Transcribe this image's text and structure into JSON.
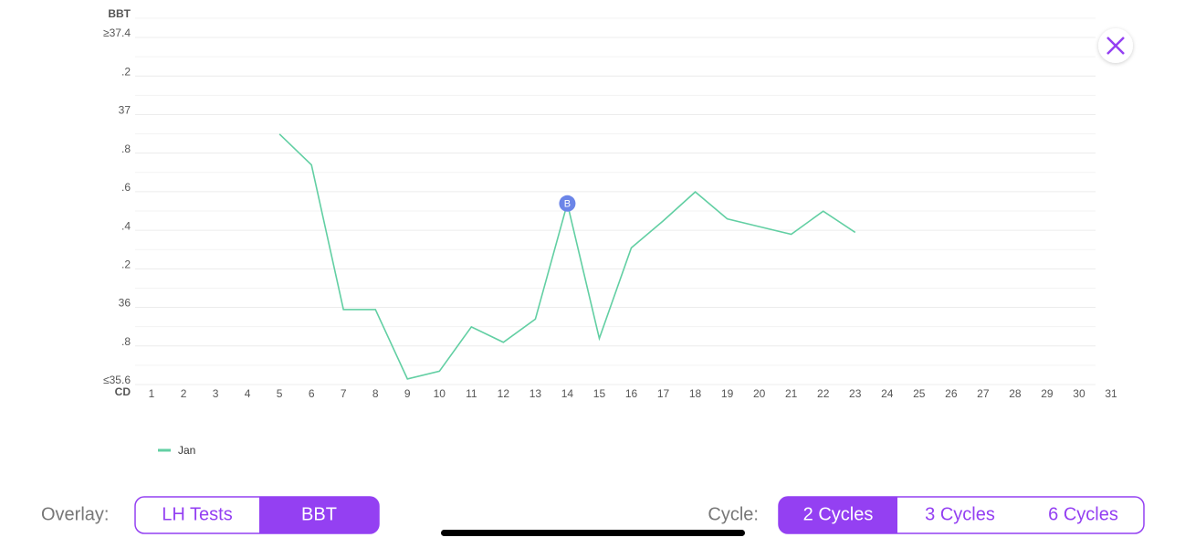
{
  "chart_data": {
    "type": "line",
    "y_label": "BBT",
    "x_label": "CD",
    "x": [
      5,
      6,
      7,
      8,
      9,
      10,
      11,
      12,
      13,
      14,
      15,
      16,
      17,
      18,
      19,
      20,
      21,
      22,
      23
    ],
    "series": [
      {
        "name": "Jan",
        "color": "#62cfa3",
        "values": [
          36.88,
          36.72,
          35.97,
          35.97,
          35.61,
          35.65,
          35.88,
          35.8,
          35.92,
          36.52,
          35.82,
          36.29,
          36.43,
          36.58,
          36.44,
          36.4,
          36.36,
          36.48,
          36.37
        ]
      }
    ],
    "xlim": [
      1,
      31
    ],
    "xticks": [
      1,
      2,
      3,
      4,
      5,
      6,
      7,
      8,
      9,
      10,
      11,
      12,
      13,
      14,
      15,
      16,
      17,
      18,
      19,
      20,
      21,
      22,
      23,
      24,
      25,
      26,
      27,
      28,
      29,
      30,
      31
    ],
    "ylim": [
      35.6,
      37.4
    ],
    "yticks": [
      {
        "value": 37.4,
        "label": "≥37.4"
      },
      {
        "value": 37.2,
        "label": ".2"
      },
      37,
      {
        "value": 36.8,
        "label": ".8"
      },
      {
        "value": 36.6,
        "label": ".6"
      },
      {
        "value": 36.4,
        "label": ".4"
      },
      {
        "value": 36.2,
        "label": ".2"
      },
      36,
      {
        "value": 35.8,
        "label": ".8"
      },
      {
        "value": 35.6,
        "label": "≤35.6"
      }
    ],
    "grid": true,
    "annotations": [
      {
        "x": 14,
        "label": "B",
        "color": "#6b85e8"
      }
    ]
  },
  "overlay": {
    "label": "Overlay:",
    "options": [
      "LH Tests",
      "BBT"
    ],
    "selected": 1
  },
  "cycle": {
    "label": "Cycle:",
    "options": [
      "2 Cycles",
      "3 Cycles",
      "6 Cycles"
    ],
    "selected": 0
  }
}
